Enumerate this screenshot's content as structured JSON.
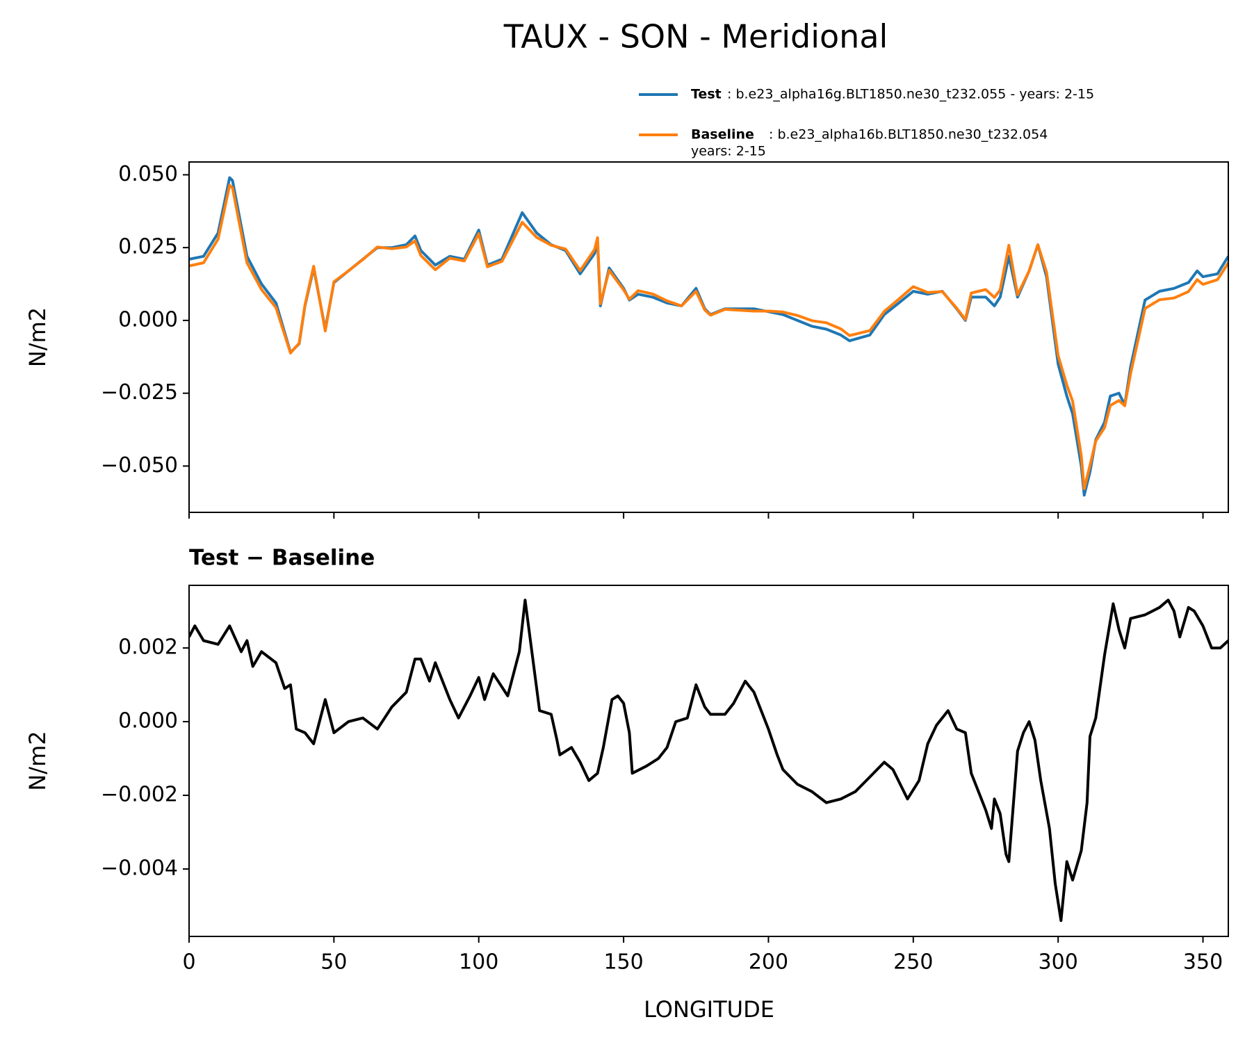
{
  "chart_data": [
    {
      "type": "line",
      "title": "TAUX - SON - Meridional",
      "ylabel": "N/m2",
      "legend": "above",
      "x": [
        0,
        5,
        10,
        14,
        15,
        20,
        25,
        30,
        35,
        38,
        40,
        43,
        47,
        50,
        55,
        60,
        65,
        70,
        75,
        78,
        80,
        85,
        90,
        95,
        100,
        103,
        108,
        115,
        120,
        125,
        130,
        135,
        140,
        141,
        142,
        145,
        150,
        152,
        155,
        160,
        165,
        170,
        175,
        178,
        180,
        185,
        190,
        195,
        200,
        205,
        210,
        215,
        220,
        225,
        228,
        235,
        240,
        245,
        250,
        255,
        260,
        265,
        268,
        270,
        275,
        278,
        280,
        283,
        286,
        290,
        293,
        296,
        300,
        303,
        305,
        308,
        309,
        311,
        313,
        316,
        318,
        321,
        323,
        325,
        330,
        335,
        340,
        345,
        348,
        350,
        355,
        358.75
      ],
      "series": [
        {
          "name": "Test",
          "label_lines": [
            ": b.e23_alpha16g.BLT1850.ne30_t232.055 - years: 2-15"
          ],
          "color": "#1f77b4",
          "values": [
            0.021,
            0.022,
            0.03,
            0.049,
            0.048,
            0.022,
            0.0125,
            0.006,
            -0.011,
            -0.008,
            0.005,
            0.018,
            -0.003,
            0.013,
            0.017,
            0.021,
            0.025,
            0.025,
            0.026,
            0.029,
            0.024,
            0.019,
            0.022,
            0.021,
            0.031,
            0.019,
            0.021,
            0.037,
            0.03,
            0.026,
            0.024,
            0.016,
            0.023,
            0.027,
            0.005,
            0.018,
            0.011,
            0.007,
            0.009,
            0.008,
            0.006,
            0.005,
            0.011,
            0.004,
            0.002,
            0.004,
            0.004,
            0.004,
            0.003,
            0.002,
            0.0,
            -0.002,
            -0.003,
            -0.005,
            -0.007,
            -0.005,
            0.002,
            0.006,
            0.01,
            0.009,
            0.01,
            0.004,
            0.0,
            0.008,
            0.008,
            0.005,
            0.008,
            0.022,
            0.008,
            0.017,
            0.026,
            0.015,
            -0.015,
            -0.026,
            -0.032,
            -0.05,
            -0.06,
            -0.052,
            -0.041,
            -0.035,
            -0.026,
            -0.025,
            -0.029,
            -0.016,
            0.007,
            0.01,
            0.011,
            0.013,
            0.017,
            0.015,
            0.016,
            0.022
          ]
        },
        {
          "name": "Baseline",
          "label_lines": [
            ": b.e23_alpha16b.BLT1850.ne30_t232.054",
            "years: 2-15"
          ],
          "color": "#ff7f0e",
          "values": [
            0.0187,
            0.0198,
            0.0279,
            0.0464,
            0.0455,
            0.0198,
            0.0106,
            0.0044,
            -0.0112,
            -0.0078,
            0.0053,
            0.0186,
            -0.0036,
            0.0133,
            0.017,
            0.0209,
            0.0252,
            0.0246,
            0.0252,
            0.0273,
            0.0223,
            0.0174,
            0.0214,
            0.0204,
            0.0298,
            0.0184,
            0.0203,
            0.0337,
            0.0285,
            0.0258,
            0.0245,
            0.0171,
            0.0244,
            0.0284,
            0.0057,
            0.0172,
            0.0105,
            0.0073,
            0.0102,
            0.0091,
            0.0067,
            0.005,
            0.01,
            0.0036,
            0.0018,
            0.0038,
            0.0035,
            0.0032,
            0.0032,
            0.0029,
            0.0017,
            -0.0001,
            -0.0008,
            -0.0029,
            -0.0052,
            -0.0035,
            0.0031,
            0.0073,
            0.0116,
            0.0096,
            0.0099,
            0.0042,
            0.0003,
            0.0094,
            0.0106,
            0.0079,
            0.0105,
            0.0258,
            0.0088,
            0.017,
            0.026,
            0.0166,
            -0.0121,
            -0.0222,
            -0.0277,
            -0.0465,
            -0.0578,
            -0.0498,
            -0.0414,
            -0.0368,
            -0.0292,
            -0.0275,
            -0.0293,
            -0.0183,
            0.0041,
            0.0071,
            0.0077,
            0.0099,
            0.014,
            0.0124,
            0.014,
            0.0198
          ]
        }
      ],
      "xlim": [
        0,
        358.75
      ],
      "ylim": [
        -0.0659,
        0.0544
      ],
      "yticks": [
        {
          "value": -0.05,
          "label": "−0.050"
        },
        {
          "value": -0.025,
          "label": "−0.025"
        },
        {
          "value": 0,
          "label": "0.000"
        },
        {
          "value": 0.025,
          "label": "0.025"
        },
        {
          "value": 0.05,
          "label": "0.050"
        }
      ]
    },
    {
      "type": "line",
      "subtitle": "Test − Baseline",
      "ylabel": "N/m2",
      "xlabel": "LONGITUDE",
      "x": [
        0,
        2,
        5,
        10,
        14,
        18,
        20,
        22,
        25,
        30,
        33,
        35,
        37,
        40,
        43,
        47,
        50,
        55,
        60,
        65,
        70,
        75,
        78,
        80,
        83,
        85,
        90,
        93,
        97,
        100,
        102,
        105,
        110,
        114,
        116,
        119,
        121,
        125,
        127,
        128,
        132,
        135,
        138,
        141,
        143,
        146,
        148,
        150,
        152,
        153,
        158,
        162,
        165,
        168,
        172,
        175,
        178,
        180,
        185,
        188,
        192,
        195,
        200,
        203,
        205,
        210,
        215,
        220,
        225,
        230,
        235,
        240,
        243,
        248,
        252,
        255,
        258,
        262,
        265,
        268,
        270,
        273,
        275,
        277,
        278,
        280,
        282,
        283,
        286,
        288,
        290,
        292,
        294,
        297,
        299,
        301,
        303,
        305,
        308,
        310,
        311,
        313,
        316,
        319,
        321,
        323,
        325,
        330,
        335,
        338,
        340,
        342,
        345,
        347,
        350,
        353,
        356,
        358.75
      ],
      "series": [
        {
          "color": "#000000",
          "values": [
            0.0023,
            0.0026,
            0.0022,
            0.0021,
            0.0026,
            0.0019,
            0.0022,
            0.0015,
            0.0019,
            0.0016,
            0.0009,
            0.001,
            -0.0002,
            -0.0003,
            -0.0006,
            0.0006,
            -0.0003,
            0.0,
            0.0001,
            -0.0002,
            0.0004,
            0.0008,
            0.0017,
            0.0017,
            0.0011,
            0.0016,
            0.0006,
            0.0001,
            0.0007,
            0.0012,
            0.0006,
            0.0013,
            0.0007,
            0.0019,
            0.0033,
            0.0015,
            0.0003,
            0.0002,
            -0.0005,
            -0.0009,
            -0.0007,
            -0.0011,
            -0.0016,
            -0.0014,
            -0.0007,
            0.0006,
            0.0007,
            0.0005,
            -0.0003,
            -0.0014,
            -0.0012,
            -0.001,
            -0.0007,
            0.0,
            0.0001,
            0.001,
            0.0004,
            0.0002,
            0.0002,
            0.0005,
            0.0011,
            0.0008,
            -0.0002,
            -0.0009,
            -0.0013,
            -0.0017,
            -0.0019,
            -0.0022,
            -0.0021,
            -0.0019,
            -0.0015,
            -0.0011,
            -0.0013,
            -0.0021,
            -0.0016,
            -0.0006,
            -0.0001,
            0.0003,
            -0.0002,
            -0.0003,
            -0.0014,
            -0.002,
            -0.0024,
            -0.0029,
            -0.0021,
            -0.0025,
            -0.0036,
            -0.0038,
            -0.0008,
            -0.0003,
            0.0,
            -0.0005,
            -0.0016,
            -0.0029,
            -0.0044,
            -0.0054,
            -0.0038,
            -0.0043,
            -0.0035,
            -0.0022,
            -0.0004,
            0.0001,
            0.0018,
            0.0032,
            0.0025,
            0.002,
            0.0028,
            0.0029,
            0.0031,
            0.0033,
            0.003,
            0.0023,
            0.0031,
            0.003,
            0.0026,
            0.002,
            0.002,
            0.0022
          ]
        }
      ],
      "xlim": [
        0,
        358.75
      ],
      "ylim": [
        -0.00583,
        0.0037
      ],
      "xticks": [
        0,
        50,
        100,
        150,
        200,
        250,
        300,
        350
      ],
      "yticks": [
        {
          "value": -0.004,
          "label": "−0.004"
        },
        {
          "value": -0.002,
          "label": "−0.002"
        },
        {
          "value": 0,
          "label": "0.000"
        },
        0.002
      ]
    }
  ]
}
